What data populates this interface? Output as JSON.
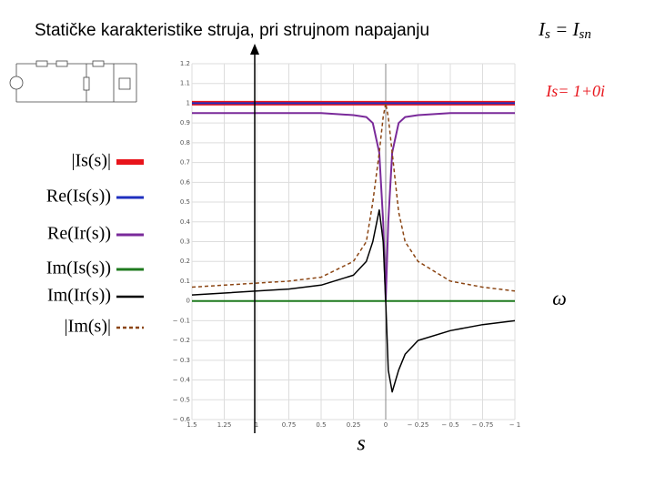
{
  "chart_data": {
    "type": "line",
    "title": "Statičke karakteristike struja, pri strujnom napajanju",
    "title_formula": [
      "I",
      "s",
      " = ",
      "I",
      "sn"
    ],
    "annotation": "Is= 1+0i",
    "x_axis_symbol": "ω",
    "x_label": "s",
    "x": [
      1.5,
      1.25,
      1,
      0.75,
      0.5,
      0.25,
      0.15,
      0.1,
      0.05,
      0.02,
      0,
      -0.02,
      -0.05,
      -0.1,
      -0.15,
      -0.25,
      -0.5,
      -0.75,
      -1
    ],
    "xlim": [
      1.5,
      -1
    ],
    "xticks": [
      1.5,
      1.25,
      1,
      0.75,
      0.5,
      0.25,
      0,
      {
        "value": -0.25,
        "label": "− 0.25"
      },
      {
        "value": -0.5,
        "label": "− 0.5"
      },
      {
        "value": -0.75,
        "label": "− 0.75"
      },
      {
        "value": -1,
        "label": "− 1"
      }
    ],
    "ylim": [
      -0.6,
      1.2
    ],
    "yticks": [
      {
        "value": -0.6,
        "label": "− 0.6"
      },
      {
        "value": -0.5,
        "label": "− 0.5"
      },
      {
        "value": -0.4,
        "label": "− 0.4"
      },
      {
        "value": -0.3,
        "label": "− 0.3"
      },
      {
        "value": -0.2,
        "label": "− 0.2"
      },
      {
        "value": -0.1,
        "label": "− 0.1"
      },
      0,
      0.1,
      0.2,
      0.3,
      0.4,
      0.5,
      0.6,
      0.7,
      0.8,
      0.9,
      1,
      1.1,
      1.2
    ],
    "grid": true,
    "series": [
      {
        "name": "|Is(s)|",
        "color": "#e8141b",
        "width": 5,
        "dashed": false,
        "values": [
          1,
          1,
          1,
          1,
          1,
          1,
          1,
          1,
          1,
          1,
          1,
          1,
          1,
          1,
          1,
          1,
          1,
          1,
          1
        ]
      },
      {
        "name": "Re(Is(s))",
        "color": "#1f2fbf",
        "width": 2,
        "dashed": false,
        "values": [
          1,
          1,
          1,
          1,
          1,
          1,
          1,
          1,
          1,
          1,
          1,
          1,
          1,
          1,
          1,
          1,
          1,
          1,
          1
        ]
      },
      {
        "name": "Re(Ir(s))",
        "color": "#7a2a9a",
        "width": 2,
        "dashed": false,
        "values": [
          0.95,
          0.95,
          0.95,
          0.95,
          0.95,
          0.94,
          0.93,
          0.9,
          0.75,
          0.4,
          0,
          0.4,
          0.75,
          0.9,
          0.93,
          0.94,
          0.95,
          0.95,
          0.95
        ]
      },
      {
        "name": "Im(Is(s))",
        "color": "#1e7a1e",
        "width": 2,
        "dashed": false,
        "values": [
          0,
          0,
          0,
          0,
          0,
          0,
          0,
          0,
          0,
          0,
          0,
          0,
          0,
          0,
          0,
          0,
          0,
          0,
          0
        ]
      },
      {
        "name": "Im(Ir(s))",
        "color": "#000000",
        "width": 1.5,
        "dashed": false,
        "values": [
          0.03,
          0.04,
          0.05,
          0.06,
          0.08,
          0.13,
          0.2,
          0.3,
          0.46,
          0.3,
          0,
          -0.35,
          -0.46,
          -0.35,
          -0.27,
          -0.2,
          -0.15,
          -0.12,
          -0.1
        ]
      },
      {
        "name": "|Im(s)|",
        "color": "#8b4513",
        "width": 1.5,
        "dashed": true,
        "values": [
          0.07,
          0.08,
          0.09,
          0.1,
          0.12,
          0.2,
          0.3,
          0.5,
          0.75,
          0.93,
          1,
          0.93,
          0.75,
          0.45,
          0.3,
          0.2,
          0.1,
          0.07,
          0.05
        ]
      }
    ]
  }
}
